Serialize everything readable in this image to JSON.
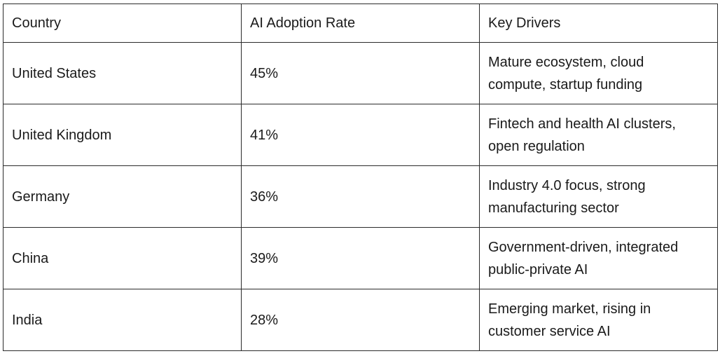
{
  "table": {
    "headers": [
      "Country",
      "AI Adoption Rate",
      "Key Drivers"
    ],
    "rows": [
      {
        "country": "United States",
        "rate": "45%",
        "drivers": "Mature ecosystem, cloud compute, startup funding"
      },
      {
        "country": "United Kingdom",
        "rate": "41%",
        "drivers": "Fintech and health AI clusters, open regulation"
      },
      {
        "country": "Germany",
        "rate": "36%",
        "drivers": "Industry 4.0 focus, strong manufacturing sector"
      },
      {
        "country": "China",
        "rate": "39%",
        "drivers": "Government-driven, integrated public-private AI"
      },
      {
        "country": "India",
        "rate": "28%",
        "drivers": "Emerging market, rising in customer service AI"
      }
    ]
  }
}
